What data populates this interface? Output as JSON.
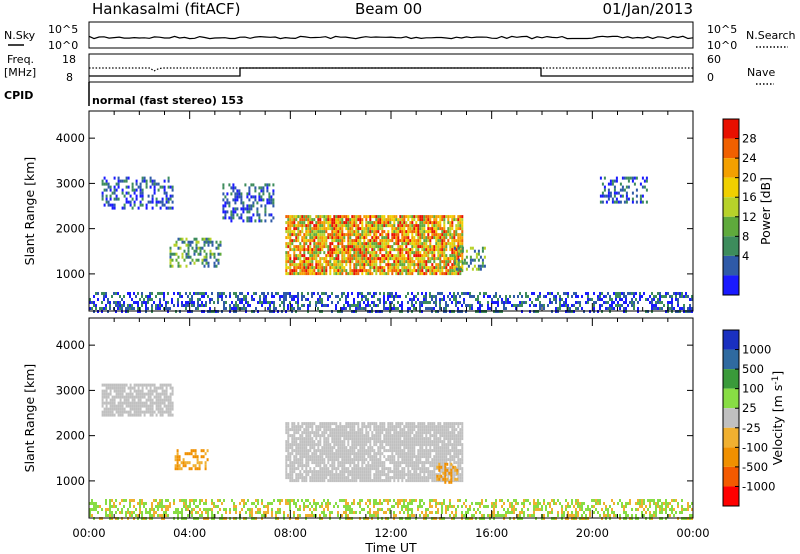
{
  "header": {
    "station": "Hankasalmi (fitACF)",
    "beam": "Beam 00",
    "date": "01/Jan/2013"
  },
  "status": {
    "left_labels": [
      "N.Sky",
      "Freq.",
      "[MHz]",
      "CPID"
    ],
    "right_labels": [
      "N.Search",
      "Nave"
    ],
    "nsky_ticks": [
      "10^5",
      "10^0"
    ],
    "nsearch_ticks": [
      "10^5",
      "10^0"
    ],
    "freq_ticks": [
      "18",
      "8"
    ],
    "nave_ticks": [
      "60",
      "0"
    ],
    "cpid_text": "normal (fast stereo) 153"
  },
  "colors": {
    "power": [
      "#1a1aff",
      "#2f5aa8",
      "#3d8c5c",
      "#5faa3c",
      "#b7d22a",
      "#f0d000",
      "#f4a000",
      "#f06000",
      "#e81000"
    ],
    "velocity_neg": [
      "#ff0000",
      "#f45a00",
      "#f09000",
      "#f0b030"
    ],
    "velocity_gs": "#c0c0c0",
    "velocity_pos": [
      "#88dd44",
      "#3a9a3a",
      "#2f6aa0",
      "#1a30c0"
    ]
  },
  "chart_data": [
    {
      "type": "heatmap",
      "panel": "power",
      "x": [
        "00:00",
        "04:00",
        "08:00",
        "12:00",
        "16:00",
        "20:00",
        "00:00"
      ],
      "ylabel": "Slant Range [km]",
      "yticks": [
        "4000",
        "3000",
        "2000",
        "1000"
      ],
      "ylim": [
        180,
        4600
      ],
      "colorbar": {
        "label": "Power [dB]",
        "ticks": [
          "28",
          "24",
          "20",
          "16",
          "12",
          "8",
          "4"
        ]
      },
      "regions": [
        {
          "start": 0.5,
          "end": 3.3,
          "r_lo": 2450,
          "r_hi": 3150,
          "level": "low"
        },
        {
          "start": 5.3,
          "end": 7.3,
          "r_lo": 2200,
          "r_hi": 3000,
          "level": "low"
        },
        {
          "start": 3.2,
          "end": 5.2,
          "r_lo": 1200,
          "r_hi": 1800,
          "level": "mid"
        },
        {
          "start": 7.8,
          "end": 14.8,
          "r_lo": 1000,
          "r_hi": 2300,
          "level": "high"
        },
        {
          "start": 14.5,
          "end": 15.7,
          "r_lo": 1100,
          "r_hi": 1600,
          "level": "mid"
        },
        {
          "start": 20.3,
          "end": 22.2,
          "r_lo": 2600,
          "r_hi": 3150,
          "level": "low"
        },
        {
          "start": 0.0,
          "end": 24.0,
          "r_lo": 200,
          "r_hi": 600,
          "level": "low"
        }
      ]
    },
    {
      "type": "heatmap",
      "panel": "velocity",
      "x": [
        "00:00",
        "04:00",
        "08:00",
        "12:00",
        "16:00",
        "20:00",
        "00:00"
      ],
      "xlabel": "Time UT",
      "ylabel": "Slant Range [km]",
      "yticks": [
        "4000",
        "3000",
        "2000",
        "1000"
      ],
      "ylim": [
        180,
        4600
      ],
      "colorbar": {
        "label": "Velocity [m s^-1]",
        "ticks": [
          "1000",
          "500",
          "100",
          "25",
          "-25",
          "-100",
          "-500",
          "-1000"
        ]
      },
      "regions": [
        {
          "start": 0.5,
          "end": 3.3,
          "r_lo": 2450,
          "r_hi": 3150,
          "class": "ground_scatter"
        },
        {
          "start": 7.8,
          "end": 14.8,
          "r_lo": 1000,
          "r_hi": 2300,
          "class": "ground_scatter"
        },
        {
          "start": 3.4,
          "end": 4.7,
          "r_lo": 1300,
          "r_hi": 1700,
          "class": "negative_low"
        },
        {
          "start": 13.8,
          "end": 14.6,
          "r_lo": 950,
          "r_hi": 1400,
          "class": "negative_low"
        },
        {
          "start": 0.0,
          "end": 24.0,
          "r_lo": 200,
          "r_hi": 600,
          "class": "positive_low"
        }
      ]
    }
  ]
}
